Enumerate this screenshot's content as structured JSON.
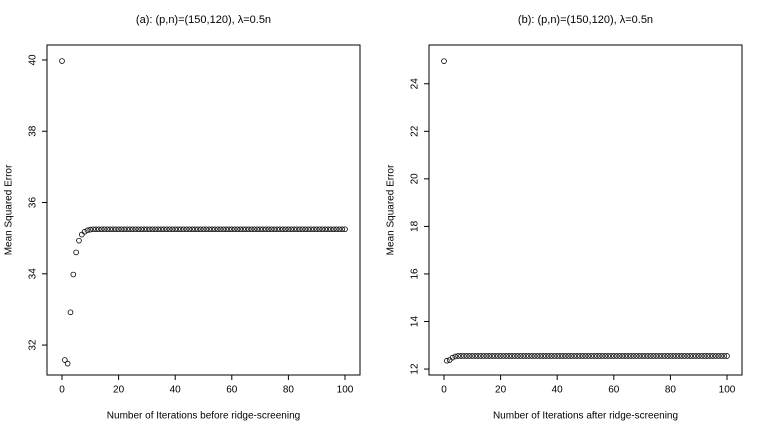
{
  "chart_data": [
    {
      "type": "scatter",
      "title": "(a): (p,n)=(150,120), λ=0.5n",
      "x_label": "Number of Iterations before ridge-screening",
      "y_label": "Mean Squared Error",
      "color": "#000000",
      "x": [
        0,
        1,
        2,
        3,
        4,
        5,
        6,
        7,
        8,
        9,
        10,
        11,
        12,
        13,
        14,
        15,
        16,
        17,
        18,
        19,
        20,
        21,
        22,
        23,
        24,
        25,
        26,
        27,
        28,
        29,
        30,
        31,
        32,
        33,
        34,
        35,
        36,
        37,
        38,
        39,
        40,
        41,
        42,
        43,
        44,
        45,
        46,
        47,
        48,
        49,
        50,
        51,
        52,
        53,
        54,
        55,
        56,
        57,
        58,
        59,
        60,
        61,
        62,
        63,
        64,
        65,
        66,
        67,
        68,
        69,
        70,
        71,
        72,
        73,
        74,
        75,
        76,
        77,
        78,
        79,
        80,
        81,
        82,
        83,
        84,
        85,
        86,
        87,
        88,
        89,
        90,
        91,
        92,
        93,
        94,
        95,
        96,
        97,
        98,
        99,
        100
      ],
      "values": [
        39.97,
        31.58,
        31.48,
        32.92,
        33.98,
        34.6,
        34.93,
        35.1,
        35.18,
        35.22,
        35.24,
        35.25,
        35.25,
        35.25,
        35.25,
        35.25,
        35.25,
        35.25,
        35.25,
        35.25,
        35.25,
        35.25,
        35.25,
        35.25,
        35.25,
        35.25,
        35.25,
        35.25,
        35.25,
        35.25,
        35.25,
        35.25,
        35.25,
        35.25,
        35.25,
        35.25,
        35.25,
        35.25,
        35.25,
        35.25,
        35.25,
        35.25,
        35.25,
        35.25,
        35.25,
        35.25,
        35.25,
        35.25,
        35.25,
        35.25,
        35.25,
        35.25,
        35.25,
        35.25,
        35.25,
        35.25,
        35.25,
        35.25,
        35.25,
        35.25,
        35.25,
        35.25,
        35.25,
        35.25,
        35.25,
        35.25,
        35.25,
        35.25,
        35.25,
        35.25,
        35.25,
        35.25,
        35.25,
        35.25,
        35.25,
        35.25,
        35.25,
        35.25,
        35.25,
        35.25,
        35.25,
        35.25,
        35.25,
        35.25,
        35.25,
        35.25,
        35.25,
        35.25,
        35.25,
        35.25,
        35.25,
        35.25,
        35.25,
        35.25,
        35.25,
        35.25,
        35.25,
        35.25,
        35.25,
        35.25,
        35.25
      ],
      "xlim": [
        -5.3,
        105.3
      ],
      "xticks": [
        0,
        20,
        40,
        60,
        80,
        100
      ],
      "ylim": [
        31.16,
        40.42
      ],
      "yticks": [
        32,
        34,
        36,
        38,
        40
      ]
    },
    {
      "type": "scatter",
      "title": "(b): (p,n)=(150,120), λ=0.5n",
      "x_label": "Number of Iterations after ridge-screening",
      "y_label": "Mean Squared Error",
      "color": "#000000",
      "x": [
        0,
        1,
        2,
        3,
        4,
        5,
        6,
        7,
        8,
        9,
        10,
        11,
        12,
        13,
        14,
        15,
        16,
        17,
        18,
        19,
        20,
        21,
        22,
        23,
        24,
        25,
        26,
        27,
        28,
        29,
        30,
        31,
        32,
        33,
        34,
        35,
        36,
        37,
        38,
        39,
        40,
        41,
        42,
        43,
        44,
        45,
        46,
        47,
        48,
        49,
        50,
        51,
        52,
        53,
        54,
        55,
        56,
        57,
        58,
        59,
        60,
        61,
        62,
        63,
        64,
        65,
        66,
        67,
        68,
        69,
        70,
        71,
        72,
        73,
        74,
        75,
        76,
        77,
        78,
        79,
        80,
        81,
        82,
        83,
        84,
        85,
        86,
        87,
        88,
        89,
        90,
        91,
        92,
        93,
        94,
        95,
        96,
        97,
        98,
        99,
        100
      ],
      "values": [
        24.95,
        12.35,
        12.38,
        12.48,
        12.53,
        12.55,
        12.55,
        12.55,
        12.55,
        12.55,
        12.55,
        12.55,
        12.55,
        12.55,
        12.55,
        12.55,
        12.55,
        12.55,
        12.55,
        12.55,
        12.55,
        12.55,
        12.55,
        12.55,
        12.55,
        12.55,
        12.55,
        12.55,
        12.55,
        12.55,
        12.55,
        12.55,
        12.55,
        12.55,
        12.55,
        12.55,
        12.55,
        12.55,
        12.55,
        12.55,
        12.55,
        12.55,
        12.55,
        12.55,
        12.55,
        12.55,
        12.55,
        12.55,
        12.55,
        12.55,
        12.55,
        12.55,
        12.55,
        12.55,
        12.55,
        12.55,
        12.55,
        12.55,
        12.55,
        12.55,
        12.55,
        12.55,
        12.55,
        12.55,
        12.55,
        12.55,
        12.55,
        12.55,
        12.55,
        12.55,
        12.55,
        12.55,
        12.55,
        12.55,
        12.55,
        12.55,
        12.55,
        12.55,
        12.55,
        12.55,
        12.55,
        12.55,
        12.55,
        12.55,
        12.55,
        12.55,
        12.55,
        12.55,
        12.55,
        12.55,
        12.55,
        12.55,
        12.55,
        12.55,
        12.55,
        12.55,
        12.55,
        12.55,
        12.55,
        12.55,
        12.55
      ],
      "xlim": [
        -5.3,
        105.3
      ],
      "xticks": [
        0,
        20,
        40,
        60,
        80,
        100
      ],
      "ylim": [
        11.75,
        25.63
      ],
      "yticks": [
        12,
        14,
        16,
        18,
        20,
        22,
        24
      ]
    }
  ]
}
